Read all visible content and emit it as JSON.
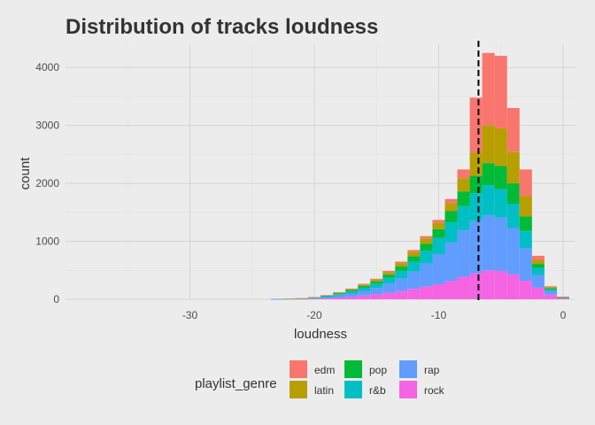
{
  "chart_data": {
    "type": "bar",
    "subtype": "stacked-histogram",
    "title": "Distribution of tracks loudness",
    "xlabel": "loudness",
    "ylabel": "count",
    "xlim": [
      -40,
      1
    ],
    "ylim": [
      0,
      4400
    ],
    "xticks": [
      -30,
      -20,
      -10,
      0
    ],
    "xtick_labels": [
      "-30",
      "-20",
      "-10",
      "0"
    ],
    "yticks": [
      0,
      1000,
      2000,
      3000,
      4000
    ],
    "ytick_labels": [
      "0",
      "1000",
      "2000",
      "3000",
      "4000"
    ],
    "grid": true,
    "bin_width": 1,
    "bins_x": [
      -23,
      -22,
      -21,
      -20,
      -19,
      -18,
      -17,
      -16,
      -15,
      -14,
      -13,
      -12,
      -11,
      -10,
      -9,
      -8,
      -7,
      -6,
      -5,
      -4,
      -3,
      -2,
      -1,
      0
    ],
    "stack_order": [
      "rock",
      "rap",
      "r&b",
      "pop",
      "latin",
      "edm"
    ],
    "series": [
      {
        "name": "rock",
        "color": "#F564E3",
        "values": [
          2,
          3,
          5,
          10,
          18,
          30,
          45,
          65,
          85,
          110,
          140,
          180,
          220,
          260,
          320,
          390,
          450,
          500,
          490,
          430,
          320,
          200,
          80,
          15
        ]
      },
      {
        "name": "rap",
        "color": "#619CFF",
        "values": [
          2,
          3,
          5,
          10,
          20,
          35,
          55,
          80,
          110,
          160,
          220,
          300,
          400,
          520,
          660,
          800,
          900,
          950,
          920,
          800,
          560,
          220,
          60,
          10
        ]
      },
      {
        "name": "r&b",
        "color": "#00BFC4",
        "values": [
          1,
          2,
          3,
          8,
          15,
          25,
          40,
          55,
          75,
          100,
          130,
          170,
          220,
          280,
          350,
          420,
          480,
          520,
          490,
          420,
          300,
          120,
          30,
          5
        ]
      },
      {
        "name": "pop",
        "color": "#00BA38",
        "values": [
          0,
          1,
          2,
          4,
          8,
          14,
          20,
          30,
          40,
          55,
          75,
          95,
          120,
          150,
          190,
          250,
          300,
          380,
          400,
          350,
          250,
          70,
          20,
          5
        ]
      },
      {
        "name": "latin",
        "color": "#B79F00",
        "values": [
          0,
          1,
          2,
          4,
          7,
          12,
          16,
          25,
          30,
          45,
          60,
          75,
          90,
          110,
          140,
          230,
          400,
          650,
          650,
          540,
          350,
          70,
          20,
          5
        ]
      },
      {
        "name": "edm",
        "color": "#F8766D",
        "values": [
          0,
          0,
          1,
          2,
          4,
          6,
          8,
          12,
          15,
          20,
          25,
          30,
          40,
          50,
          70,
          150,
          950,
          1250,
          1250,
          760,
          460,
          70,
          15,
          5
        ]
      }
    ],
    "reference_line": {
      "x": -6.8,
      "style": "dashed",
      "color": "#000000"
    },
    "legend": {
      "title": "playlist_genre",
      "position": "bottom",
      "entries": [
        "edm",
        "latin",
        "pop",
        "r&b",
        "rap",
        "rock"
      ]
    }
  }
}
